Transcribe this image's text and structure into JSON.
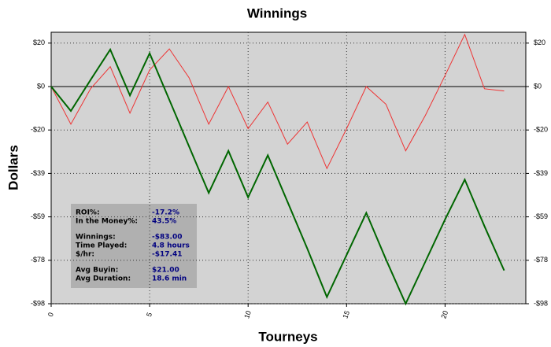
{
  "chart_data": {
    "type": "line",
    "title": "Winnings",
    "x_label": "Tourneys",
    "y_label": "Dollars",
    "x": [
      0,
      1,
      2,
      3,
      4,
      5,
      6,
      7,
      8,
      9,
      10,
      11,
      12,
      13,
      14,
      15,
      16,
      17,
      18,
      19,
      20,
      21,
      22,
      23
    ],
    "series": [
      {
        "color": "#ee3333",
        "values": [
          0,
          -17,
          -1,
          9,
          -12,
          7.5,
          17,
          4,
          -17,
          0,
          -19,
          -7,
          -26,
          -16,
          -37,
          -19,
          0,
          -8,
          -29,
          -13,
          5,
          23.5,
          -1,
          -2
        ]
      },
      {
        "color": "#006600",
        "values": [
          0,
          -11,
          3,
          16.7,
          -4,
          15,
          -6,
          -27,
          -48,
          -29,
          -50,
          -31,
          -52,
          -73,
          -95,
          -76,
          -57,
          -78,
          -98,
          -79,
          -60,
          -42,
          -63,
          -83
        ]
      }
    ],
    "xlim": [
      0,
      24.1
    ],
    "xticks": [
      0,
      5,
      10,
      15,
      20
    ],
    "ylim": [
      -98,
      24.5
    ],
    "yticks": [
      {
        "value": 19.6,
        "label": "$20"
      },
      {
        "value": 0,
        "label": "$0"
      },
      {
        "value": -19.6,
        "label": "-$20"
      },
      {
        "value": -39.2,
        "label": "-$39"
      },
      {
        "value": -58.8,
        "label": "-$59"
      },
      {
        "value": -78.4,
        "label": "-$78"
      },
      {
        "value": -98,
        "label": "-$98"
      }
    ],
    "grid": true,
    "stats": [
      [
        {
          "label": "ROI%:",
          "value": "-17.2%"
        },
        {
          "label": "In the Money%:",
          "value": "43.5%"
        }
      ],
      [
        {
          "label": "Winnings:",
          "value": "-$83.00"
        },
        {
          "label": "Time Played:",
          "value": "4.8 hours"
        },
        {
          "label": "$/hr:",
          "value": "-$17.41"
        }
      ],
      [
        {
          "label": "Avg Buyin:",
          "value": "$21.00"
        },
        {
          "label": "Avg Duration:",
          "value": "18.6 min"
        }
      ]
    ]
  }
}
